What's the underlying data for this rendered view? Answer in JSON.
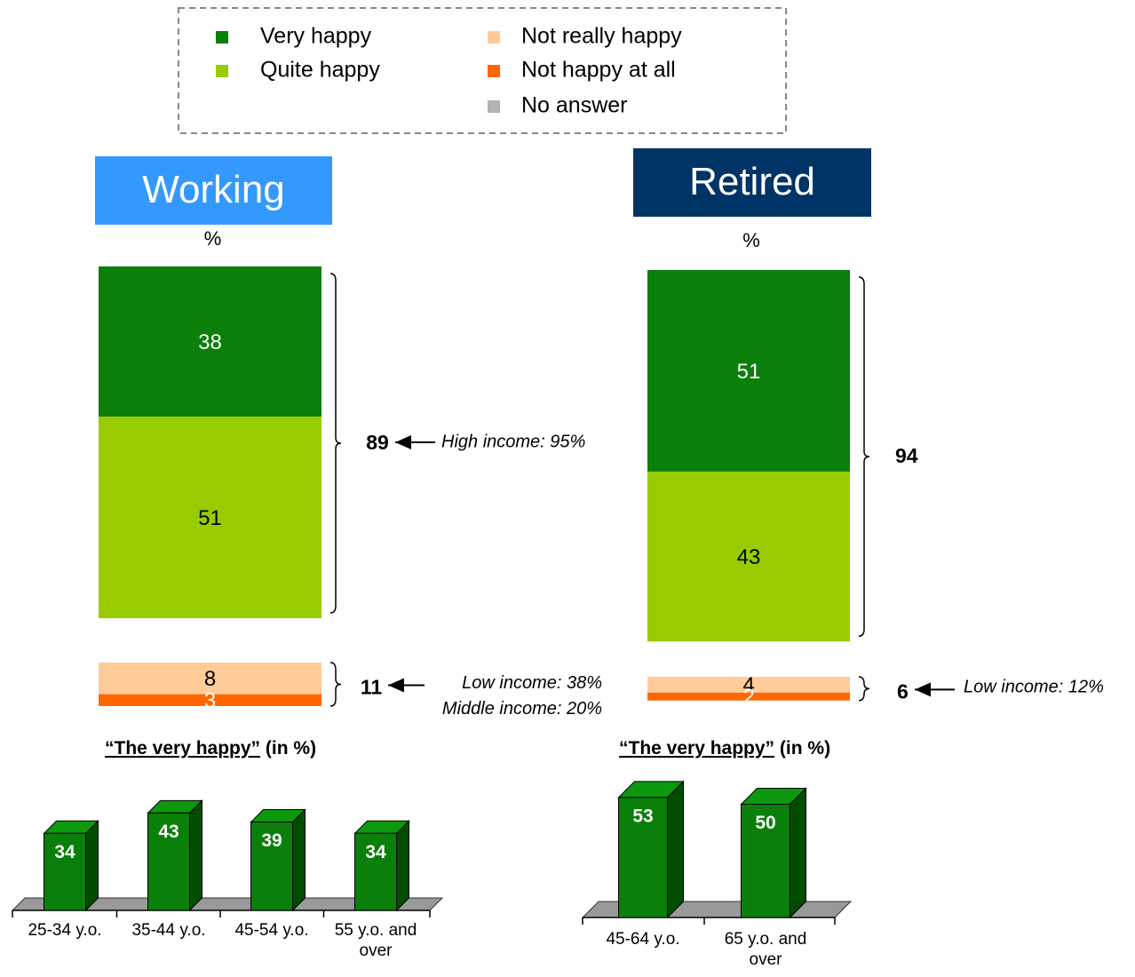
{
  "legend": {
    "items": [
      {
        "name": "Very happy",
        "color": "#0a7f0a"
      },
      {
        "name": "Quite happy",
        "color": "#99cc00"
      },
      {
        "name": "Not really happy",
        "color": "#ffcc99"
      },
      {
        "name": "Not happy at all",
        "color": "#ff6600"
      },
      {
        "name": "No answer",
        "color": "#b2b2b2"
      }
    ]
  },
  "chart_data": [
    {
      "type": "stacked_bar",
      "title": "Working",
      "unit": "%",
      "values": [
        38,
        51,
        8,
        3,
        null
      ],
      "happy_total": 89,
      "happy_note": "High income: 95%",
      "unhappy_total": 11,
      "unhappy_notes": [
        "Low income: 38%",
        "Middle income: 20%"
      ]
    },
    {
      "type": "stacked_bar",
      "title": "Retired",
      "unit": "%",
      "values": [
        51,
        43,
        4,
        2,
        null
      ],
      "happy_total": 94,
      "unhappy_total": 6,
      "unhappy_notes": [
        "Low income: 12%"
      ]
    },
    {
      "type": "bar3d",
      "title": "“The very happy”",
      "subtitle": "(in %)",
      "color": "#0a7f0a",
      "categories": [
        "25-34 y.o.",
        "35-44 y.o.",
        "45-54 y.o.",
        "55 y.o. and over"
      ],
      "values": [
        34,
        43,
        39,
        34
      ]
    },
    {
      "type": "bar3d",
      "title": "“The very happy”",
      "subtitle": "(in %)",
      "color": "#0a7f0a",
      "categories": [
        "45-64 y.o.",
        "65 y.o. and over"
      ],
      "values": [
        53,
        50
      ]
    }
  ]
}
